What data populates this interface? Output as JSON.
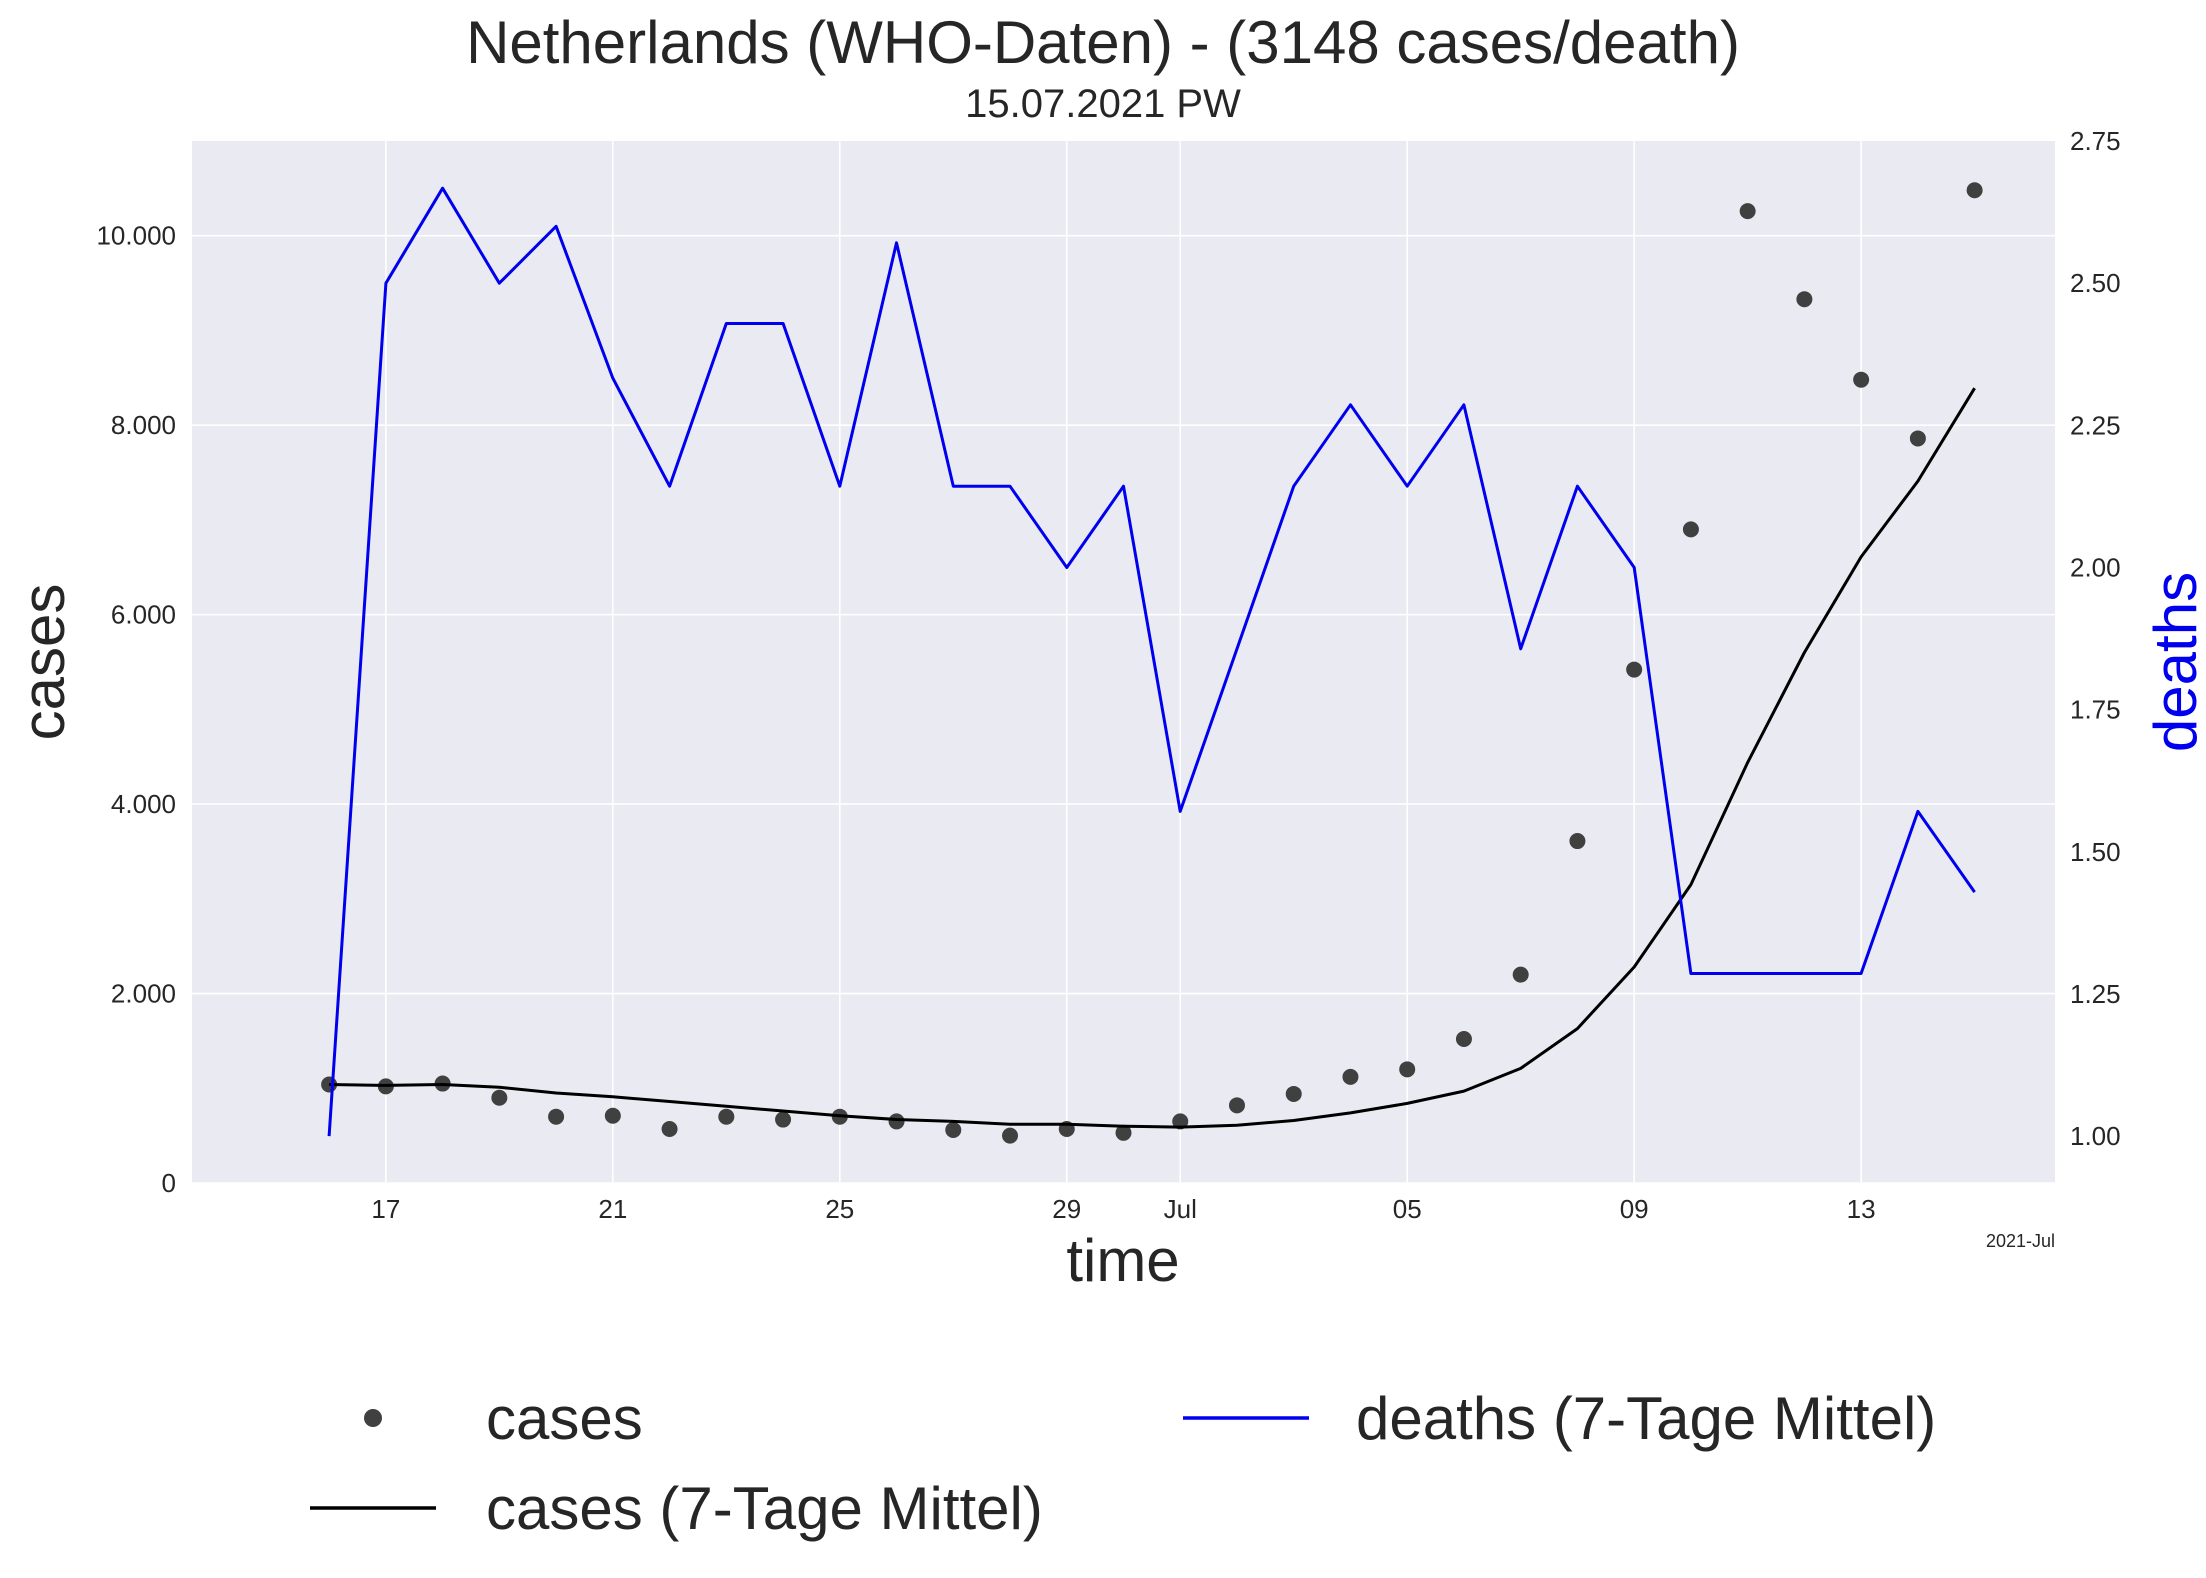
{
  "title": "Netherlands (WHO-Daten) - (3148 cases/death)",
  "subtitle": "15.07.2021 PW",
  "chart_data": {
    "type": "line",
    "xlabel": "time",
    "ylabel": "cases",
    "y2label": "deaths",
    "x_offset_label": "2021-Jul",
    "x": [
      "2021-06-16",
      "2021-06-17",
      "2021-06-18",
      "2021-06-19",
      "2021-06-20",
      "2021-06-21",
      "2021-06-22",
      "2021-06-23",
      "2021-06-24",
      "2021-06-25",
      "2021-06-26",
      "2021-06-27",
      "2021-06-28",
      "2021-06-29",
      "2021-06-30",
      "2021-07-01",
      "2021-07-02",
      "2021-07-03",
      "2021-07-04",
      "2021-07-05",
      "2021-07-06",
      "2021-07-07",
      "2021-07-08",
      "2021-07-09",
      "2021-07-10",
      "2021-07-11",
      "2021-07-12",
      "2021-07-13",
      "2021-07-14",
      "2021-07-15"
    ],
    "xlim": [
      "2021-06-13 14:00",
      "2021-07-16 10:00"
    ],
    "xticks": [
      {
        "date": "2021-06-17",
        "label": "17"
      },
      {
        "date": "2021-06-21",
        "label": "21"
      },
      {
        "date": "2021-06-25",
        "label": "25"
      },
      {
        "date": "2021-06-29",
        "label": "29"
      },
      {
        "date": "2021-07-01",
        "label": "Jul"
      },
      {
        "date": "2021-07-05",
        "label": "05"
      },
      {
        "date": "2021-07-09",
        "label": "09"
      },
      {
        "date": "2021-07-13",
        "label": "13"
      }
    ],
    "ylim": [
      0,
      11000
    ],
    "yticks": [
      0,
      2000,
      4000,
      6000,
      8000,
      10000
    ],
    "ytick_labels": [
      "0",
      "2.000",
      "4.000",
      "6.000",
      "8.000",
      "10.000"
    ],
    "y2lim": [
      0.9175,
      2.75
    ],
    "y2ticks": [
      1.0,
      1.25,
      1.5,
      1.75,
      2.0,
      2.25,
      2.5,
      2.75
    ],
    "y2tick_labels": [
      "1.00",
      "1.25",
      "1.50",
      "1.75",
      "2.00",
      "2.25",
      "2.50",
      "2.75"
    ],
    "grid": true,
    "legend_position": "bottom",
    "series": [
      {
        "name": "cases",
        "kind": "scatter",
        "axis": "left",
        "color": "#404040",
        "values": [
          1040,
          1020,
          1050,
          900,
          700,
          710,
          570,
          700,
          670,
          700,
          650,
          560,
          500,
          570,
          530,
          650,
          820,
          940,
          1120,
          1200,
          1520,
          2200,
          3610,
          5420,
          6900,
          10260,
          9330,
          8480,
          7860,
          10480
        ]
      },
      {
        "name": "cases (7-Tage Mittel)",
        "kind": "line",
        "axis": "left",
        "color": "#000000",
        "values": [
          1040,
          1030,
          1040,
          1010,
          950,
          910,
          860,
          810,
          760,
          710,
          670,
          650,
          620,
          620,
          600,
          590,
          610,
          660,
          740,
          840,
          970,
          1210,
          1630,
          2280,
          3150,
          4440,
          5600,
          6610,
          7410,
          8390
        ]
      },
      {
        "name": "deaths (7-Tage Mittel)",
        "kind": "line",
        "axis": "right",
        "color": "#0000ee",
        "values": [
          1.0,
          2.5,
          2.667,
          2.5,
          2.6,
          2.333,
          2.143,
          2.429,
          2.429,
          2.143,
          2.571,
          2.143,
          2.143,
          2.0,
          2.143,
          1.571,
          1.857,
          2.143,
          2.286,
          2.143,
          2.286,
          1.857,
          2.143,
          2.0,
          1.286,
          1.286,
          1.286,
          1.286,
          1.571,
          1.429
        ]
      }
    ]
  }
}
